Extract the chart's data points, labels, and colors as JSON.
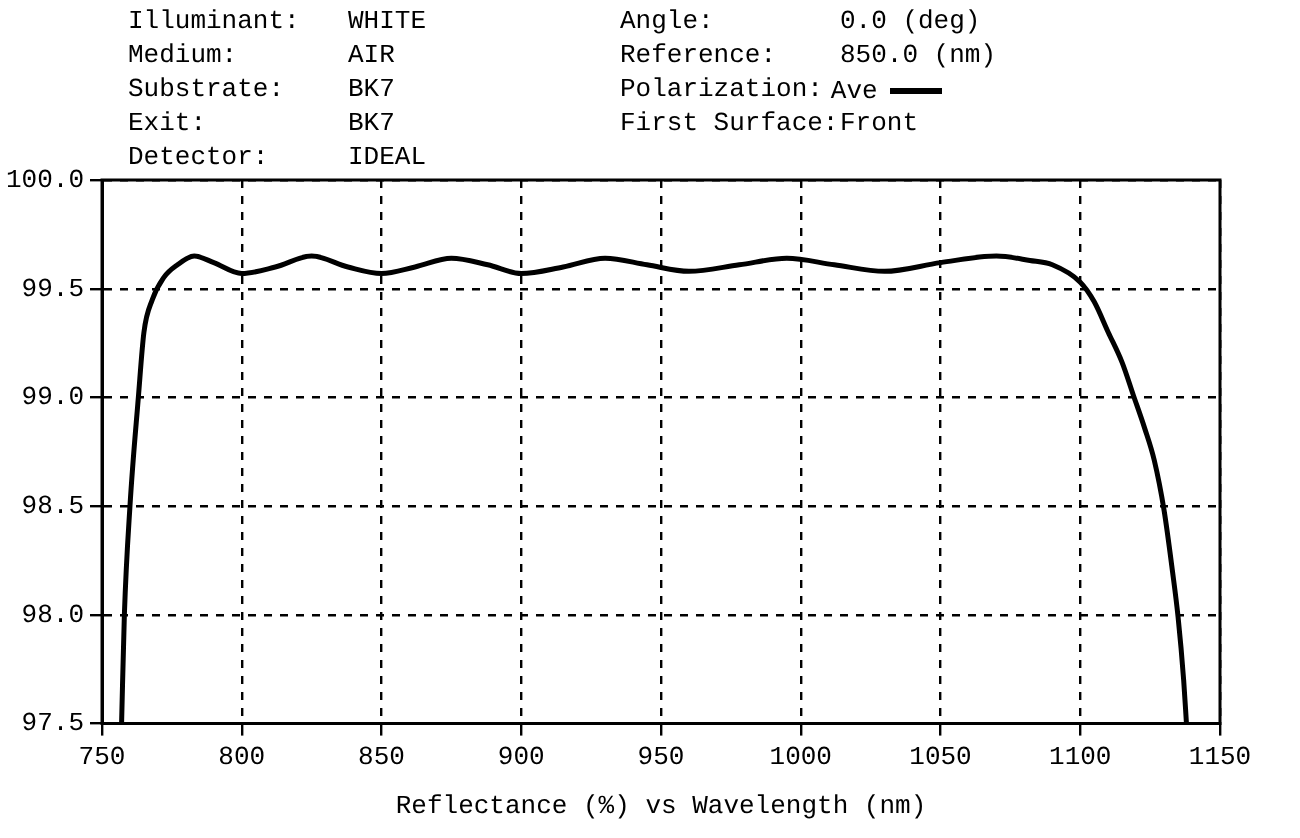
{
  "chart_data": {
    "type": "line",
    "annotations": [
      "Illuminant: WHITE",
      "Medium: AIR",
      "Substrate: BK7",
      "Exit: BK7",
      "Detector: IDEAL",
      "Angle: 0.0 (deg)",
      "Reference: 850.0 (nm)",
      "Polarization:",
      "First Surface:Front"
    ],
    "xlabel": "Reflectance (%) vs Wavelength (nm)",
    "series": [
      {
        "name": "Ave",
        "color": "#000000",
        "x": [
          757,
          758,
          760,
          763,
          765,
          768,
          772,
          777,
          783,
          790,
          800,
          812,
          825,
          838,
          850,
          862,
          875,
          888,
          900,
          915,
          930,
          945,
          960,
          978,
          995,
          1012,
          1030,
          1050,
          1070,
          1082,
          1090,
          1100,
          1105,
          1110,
          1115,
          1119,
          1123,
          1126.5,
          1130,
          1133,
          1135,
          1137,
          1138
        ],
        "values": [
          97.5,
          98.0,
          98.5,
          99.0,
          99.3,
          99.45,
          99.55,
          99.61,
          99.65,
          99.62,
          99.57,
          99.6,
          99.65,
          99.6,
          99.57,
          99.6,
          99.64,
          99.61,
          99.57,
          99.6,
          99.64,
          99.61,
          99.58,
          99.61,
          99.64,
          99.61,
          99.58,
          99.62,
          99.65,
          99.63,
          99.61,
          99.53,
          99.44,
          99.3,
          99.16,
          99.01,
          98.86,
          98.71,
          98.48,
          98.2,
          97.99,
          97.7,
          97.5
        ]
      }
    ],
    "xlim": [
      750,
      1150
    ],
    "xticks": [
      750,
      800,
      850,
      900,
      950,
      1000,
      1050,
      1100,
      1150
    ],
    "ylim": [
      97.5,
      100
    ],
    "yticks": [
      {
        "value": 97.5,
        "label": "97.5"
      },
      {
        "value": 98,
        "label": "98.0"
      },
      {
        "value": 98.5,
        "label": "98.5"
      },
      {
        "value": 99,
        "label": "99.0"
      },
      {
        "value": 99.5,
        "label": "99.5"
      },
      {
        "value": 100,
        "label": "100.0"
      }
    ],
    "grid": true,
    "legend": "top",
    "marker": "none",
    "line_style": "solid"
  }
}
